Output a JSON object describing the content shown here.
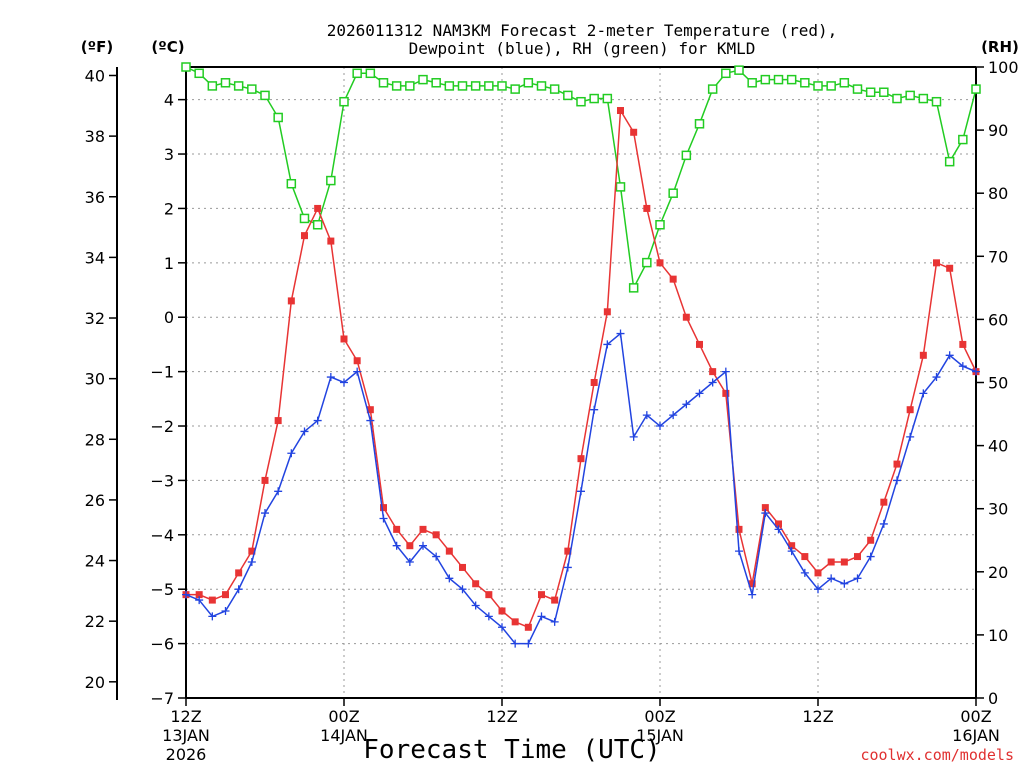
{
  "chart_data": {
    "type": "line",
    "title_line1": "2026011312 NAM3KM Forecast 2-meter Temperature (red),",
    "title_line2": "Dewpoint (blue), RH (green) for KMLD",
    "xlabel": "Forecast Time (UTC)",
    "credit": "coolwx.com/models",
    "units": {
      "fahrenheit": "(ºF)",
      "celsius": "(ºC)",
      "rh": "(RH)"
    },
    "colors": {
      "temperature": "#e83434",
      "dewpoint": "#2244e0",
      "rh": "#22cc22",
      "grid": "#999999"
    },
    "x_range_hours": [
      0,
      60
    ],
    "x_ticks": [
      {
        "hour": 0,
        "label": "12Z",
        "date": "13JAN",
        "year": "2026"
      },
      {
        "hour": 12,
        "label": "00Z",
        "date": "14JAN",
        "year": ""
      },
      {
        "hour": 24,
        "label": "12Z",
        "date": "",
        "year": ""
      },
      {
        "hour": 36,
        "label": "00Z",
        "date": "15JAN",
        "year": ""
      },
      {
        "hour": 48,
        "label": "12Z",
        "date": "",
        "year": ""
      },
      {
        "hour": 60,
        "label": "00Z",
        "date": "16JAN",
        "year": ""
      }
    ],
    "ylim_celsius": [
      -7,
      4.6
    ],
    "yticks_celsius": [
      -7,
      -6,
      -5,
      -4,
      -3,
      -2,
      -1,
      0,
      1,
      2,
      3,
      4
    ],
    "ylim_fahrenheit": [
      19.4,
      40.28
    ],
    "yticks_fahrenheit": [
      20,
      22,
      24,
      26,
      28,
      30,
      32,
      34,
      36,
      38,
      40
    ],
    "ylim_rh": [
      0,
      100
    ],
    "yticks_rh": [
      0,
      10,
      20,
      30,
      40,
      50,
      60,
      70,
      80,
      90,
      100
    ],
    "series": [
      {
        "name": "Temperature",
        "unit": "C",
        "x": [
          0,
          1,
          2,
          3,
          4,
          5,
          6,
          7,
          8,
          9,
          10,
          11,
          12,
          13,
          14,
          15,
          16,
          17,
          18,
          19,
          20,
          21,
          22,
          23,
          24,
          25,
          26,
          27,
          28,
          29,
          30,
          31,
          32,
          33,
          34,
          35,
          36,
          37,
          38,
          39,
          40,
          41,
          42,
          43,
          44,
          45,
          46,
          47,
          48,
          49,
          50,
          51,
          52,
          53,
          54,
          55,
          56,
          57,
          58,
          59,
          60
        ],
        "values": [
          -5.1,
          -5.1,
          -5.2,
          -5.1,
          -4.7,
          -4.3,
          -3.0,
          -1.9,
          0.3,
          1.5,
          2.0,
          1.4,
          -0.4,
          -0.8,
          -1.7,
          -3.5,
          -3.9,
          -4.2,
          -3.9,
          -4.0,
          -4.3,
          -4.6,
          -4.9,
          -5.1,
          -5.4,
          -5.6,
          -5.7,
          -5.1,
          -5.2,
          -4.3,
          -2.6,
          -1.2,
          0.1,
          3.8,
          3.4,
          2.0,
          1.0,
          0.7,
          0.0,
          -0.5,
          -1.0,
          -1.4,
          -3.9,
          -4.9,
          -3.5,
          -3.8,
          -4.2,
          -4.4,
          -4.7,
          -4.5,
          -4.5,
          -4.4,
          -4.1,
          -3.4,
          -2.7,
          -1.7,
          -0.7,
          1.0,
          0.9,
          -0.5,
          -1.0
        ]
      },
      {
        "name": "Dewpoint",
        "unit": "C",
        "x": [
          0,
          1,
          2,
          3,
          4,
          5,
          6,
          7,
          8,
          9,
          10,
          11,
          12,
          13,
          14,
          15,
          16,
          17,
          18,
          19,
          20,
          21,
          22,
          23,
          24,
          25,
          26,
          27,
          28,
          29,
          30,
          31,
          32,
          33,
          34,
          35,
          36,
          37,
          38,
          39,
          40,
          41,
          42,
          43,
          44,
          45,
          46,
          47,
          48,
          49,
          50,
          51,
          52,
          53,
          54,
          55,
          56,
          57,
          58,
          59,
          60
        ],
        "values": [
          -5.1,
          -5.2,
          -5.5,
          -5.4,
          -5.0,
          -4.5,
          -3.6,
          -3.2,
          -2.5,
          -2.1,
          -1.9,
          -1.1,
          -1.2,
          -1.0,
          -1.9,
          -3.7,
          -4.2,
          -4.5,
          -4.2,
          -4.4,
          -4.8,
          -5.0,
          -5.3,
          -5.5,
          -5.7,
          -6.0,
          -6.0,
          -5.5,
          -5.6,
          -4.6,
          -3.2,
          -1.7,
          -0.5,
          -0.3,
          -2.2,
          -1.8,
          -2.0,
          -1.8,
          -1.6,
          -1.4,
          -1.2,
          -1.0,
          -4.3,
          -5.1,
          -3.6,
          -3.9,
          -4.3,
          -4.7,
          -5.0,
          -4.8,
          -4.9,
          -4.8,
          -4.4,
          -3.8,
          -3.0,
          -2.2,
          -1.4,
          -1.1,
          -0.7,
          -0.9,
          -1.0
        ]
      },
      {
        "name": "RH",
        "unit": "%",
        "x": [
          0,
          1,
          2,
          3,
          4,
          5,
          6,
          7,
          8,
          9,
          10,
          11,
          12,
          13,
          14,
          15,
          16,
          17,
          18,
          19,
          20,
          21,
          22,
          23,
          24,
          25,
          26,
          27,
          28,
          29,
          30,
          31,
          32,
          33,
          34,
          35,
          36,
          37,
          38,
          39,
          40,
          41,
          42,
          43,
          44,
          45,
          46,
          47,
          48,
          49,
          50,
          51,
          52,
          53,
          54,
          55,
          56,
          57,
          58,
          59,
          60
        ],
        "values": [
          100,
          99,
          97,
          97.5,
          97,
          96.5,
          95.5,
          92,
          81.5,
          76,
          75,
          82,
          94.5,
          99,
          99,
          97.5,
          97,
          97,
          98,
          97.5,
          97,
          97,
          97,
          97,
          97,
          96.5,
          97.5,
          97,
          96.5,
          95.5,
          94.5,
          95,
          95,
          81,
          65,
          69,
          75,
          80,
          86,
          91,
          96.5,
          99,
          99.5,
          97.5,
          98,
          98,
          98,
          97.5,
          97,
          97,
          97.5,
          96.5,
          96,
          96,
          95,
          95.5,
          95,
          94.5,
          85,
          88.5,
          96.5
        ]
      }
    ]
  }
}
